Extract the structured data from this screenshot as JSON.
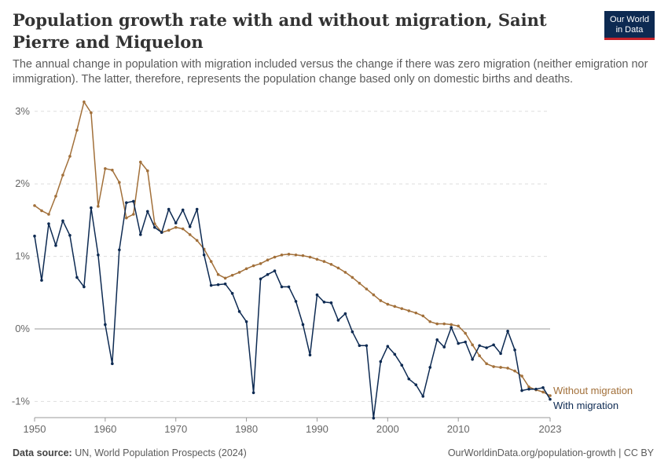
{
  "header": {
    "title": "Population growth rate with and without migration, Saint Pierre and Miquelon",
    "subtitle": "The annual change in population with migration included versus the change if there was zero migration (neither emigration nor immigration). The latter, therefore, represents the population change based only on domestic births and deaths.",
    "logo_line1": "Our World",
    "logo_line2": "in Data"
  },
  "footer": {
    "source_label": "Data source:",
    "source_text": "UN, World Population Prospects (2024)",
    "link": "OurWorldinData.org/population-growth | CC BY"
  },
  "colors": {
    "without": "#a2703a",
    "with": "#0d2a52"
  },
  "chart_data": {
    "type": "line",
    "title": "Population growth rate with and without migration, Saint Pierre and Miquelon",
    "xlabel": "",
    "ylabel": "",
    "xlim": [
      1950,
      2023
    ],
    "ylim": [
      -1.2,
      3.1
    ],
    "yticks": [
      -1,
      0,
      1,
      2,
      3
    ],
    "ytick_labels": [
      "-1%",
      "0%",
      "1%",
      "2%",
      "3%"
    ],
    "xticks": [
      1950,
      1960,
      1970,
      1980,
      1990,
      2000,
      2010,
      2023
    ],
    "xtick_labels": [
      "1950",
      "1960",
      "1970",
      "1980",
      "1990",
      "2000",
      "2010",
      "2023"
    ],
    "grid": true,
    "legend": "labels at right end of lines",
    "x": [
      1950,
      1951,
      1952,
      1953,
      1954,
      1955,
      1956,
      1957,
      1958,
      1959,
      1960,
      1961,
      1962,
      1963,
      1964,
      1965,
      1966,
      1967,
      1968,
      1969,
      1970,
      1971,
      1972,
      1973,
      1974,
      1975,
      1976,
      1977,
      1978,
      1979,
      1980,
      1981,
      1982,
      1983,
      1984,
      1985,
      1986,
      1987,
      1988,
      1989,
      1990,
      1991,
      1992,
      1993,
      1994,
      1995,
      1996,
      1997,
      1998,
      1999,
      2000,
      2001,
      2002,
      2003,
      2004,
      2005,
      2006,
      2007,
      2008,
      2009,
      2010,
      2011,
      2012,
      2013,
      2014,
      2015,
      2016,
      2017,
      2018,
      2019,
      2020,
      2021,
      2022,
      2023
    ],
    "series": [
      {
        "name": "Without migration",
        "values": [
          1.7,
          1.63,
          1.58,
          1.83,
          2.12,
          2.38,
          2.74,
          3.13,
          2.98,
          1.69,
          2.21,
          2.19,
          2.02,
          1.53,
          1.58,
          2.3,
          2.18,
          1.45,
          1.33,
          1.36,
          1.4,
          1.38,
          1.3,
          1.22,
          1.1,
          0.93,
          0.75,
          0.7,
          0.74,
          0.78,
          0.83,
          0.87,
          0.9,
          0.95,
          0.99,
          1.02,
          1.03,
          1.02,
          1.01,
          0.99,
          0.96,
          0.93,
          0.89,
          0.84,
          0.78,
          0.71,
          0.63,
          0.55,
          0.47,
          0.39,
          0.34,
          0.31,
          0.28,
          0.25,
          0.22,
          0.18,
          0.1,
          0.07,
          0.07,
          0.06,
          0.04,
          -0.06,
          -0.22,
          -0.37,
          -0.48,
          -0.52,
          -0.53,
          -0.54,
          -0.58,
          -0.65,
          -0.8,
          -0.84,
          -0.87,
          -0.92
        ]
      },
      {
        "name": "With migration",
        "values": [
          1.28,
          0.67,
          1.45,
          1.15,
          1.49,
          1.29,
          0.71,
          0.58,
          1.67,
          1.02,
          0.06,
          -0.48,
          1.09,
          1.74,
          1.76,
          1.3,
          1.62,
          1.4,
          1.33,
          1.65,
          1.46,
          1.64,
          1.41,
          1.65,
          1.02,
          0.6,
          0.61,
          0.62,
          0.49,
          0.24,
          0.1,
          -0.88,
          0.69,
          0.75,
          0.8,
          0.58,
          0.58,
          0.38,
          0.06,
          -0.36,
          0.47,
          0.37,
          0.36,
          0.12,
          0.21,
          -0.04,
          -0.23,
          -0.23,
          -1.23,
          -0.45,
          -0.24,
          -0.35,
          -0.5,
          -0.69,
          -0.77,
          -0.93,
          -0.53,
          -0.15,
          -0.25,
          0.02,
          -0.2,
          -0.18,
          -0.42,
          -0.23,
          -0.26,
          -0.22,
          -0.34,
          -0.03,
          -0.29,
          -0.85,
          -0.83,
          -0.83,
          -0.81,
          -0.97
        ]
      }
    ]
  }
}
